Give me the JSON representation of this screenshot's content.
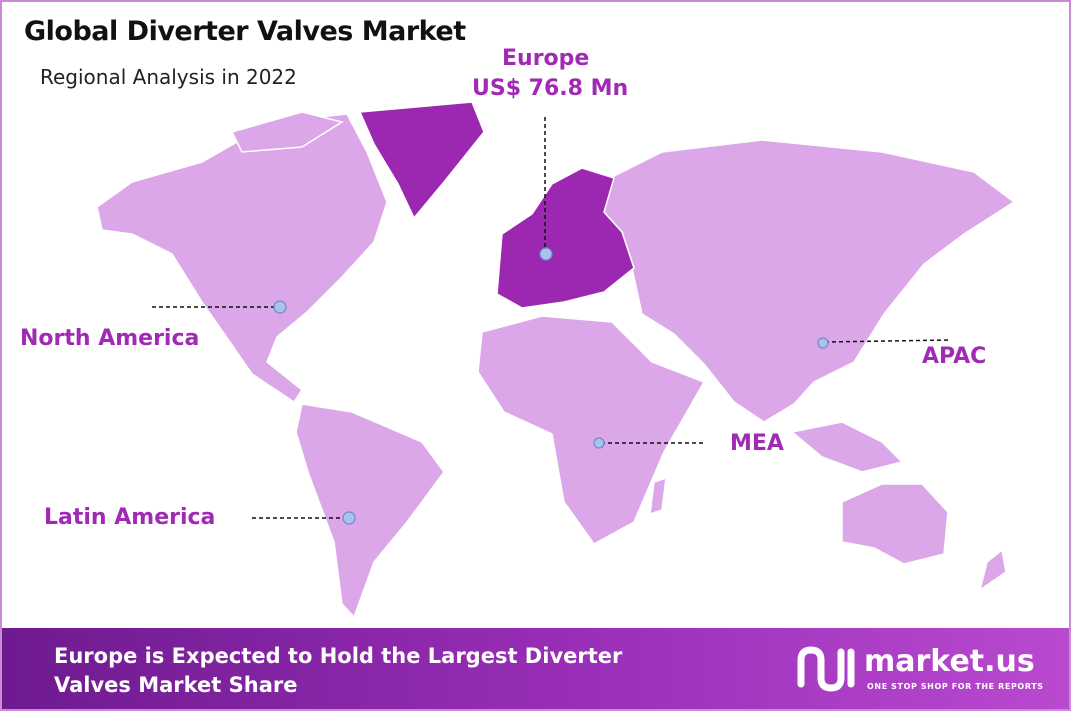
{
  "header": {
    "title": "Global Diverter Valves Market",
    "subtitle": "Regional Analysis in 2022"
  },
  "map": {
    "regions": [
      {
        "label": "Europe",
        "value": "US$ 76.8 Mn"
      },
      {
        "label": "North America"
      },
      {
        "label": "APAC"
      },
      {
        "label": "MEA"
      },
      {
        "label": "Latin America"
      }
    ]
  },
  "footer": {
    "headline": "Europe is Expected to Hold the Largest Diverter Valves Market Share",
    "logo": {
      "name": "market.us",
      "tagline": "ONE STOP SHOP FOR THE REPORTS"
    }
  }
}
